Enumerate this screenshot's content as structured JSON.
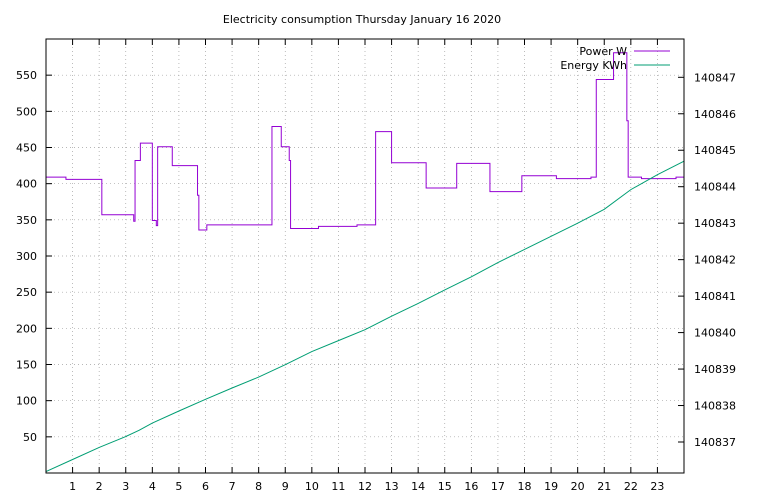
{
  "chart_data": {
    "type": "line",
    "title": "Electricity consumption Thursday January 16 2020",
    "xlabel": "",
    "ylabel": "",
    "y2label": "",
    "xlim": [
      0,
      24
    ],
    "ylim": [
      0,
      600
    ],
    "y2lim": [
      140836.15,
      140848.05
    ],
    "grid": true,
    "legend_position": "top-right",
    "x_ticks": [
      "1",
      "2",
      "3",
      "4",
      "5",
      "6",
      "7",
      "8",
      "9",
      "10",
      "11",
      "12",
      "13",
      "14",
      "15",
      "16",
      "17",
      "18",
      "19",
      "20",
      "21",
      "22",
      "23"
    ],
    "y_ticks": [
      "50",
      "100",
      "150",
      "200",
      "250",
      "300",
      "350",
      "400",
      "450",
      "500",
      "550"
    ],
    "y2_ticks": [
      "140837",
      "140838",
      "140839",
      "140840",
      "140841",
      "140842",
      "140843",
      "140844",
      "140845",
      "140846",
      "140847"
    ],
    "series": [
      {
        "name": "Power W",
        "color": "#9400d3",
        "axis": "left",
        "step": true,
        "points": [
          [
            0,
            409
          ],
          [
            0.75,
            409
          ],
          [
            0.75,
            406
          ],
          [
            2.1,
            406
          ],
          [
            2.1,
            357
          ],
          [
            3.3,
            357
          ],
          [
            3.3,
            348
          ],
          [
            3.35,
            348
          ],
          [
            3.35,
            432
          ],
          [
            3.55,
            432
          ],
          [
            3.55,
            456
          ],
          [
            4.0,
            456
          ],
          [
            4.0,
            349
          ],
          [
            4.15,
            349
          ],
          [
            4.15,
            342
          ],
          [
            4.2,
            342
          ],
          [
            4.2,
            451
          ],
          [
            4.75,
            451
          ],
          [
            4.75,
            425
          ],
          [
            5.7,
            425
          ],
          [
            5.7,
            384
          ],
          [
            5.75,
            384
          ],
          [
            5.75,
            336
          ],
          [
            6.05,
            336
          ],
          [
            6.05,
            343
          ],
          [
            8.5,
            343
          ],
          [
            8.5,
            479
          ],
          [
            8.85,
            479
          ],
          [
            8.85,
            451
          ],
          [
            9.15,
            451
          ],
          [
            9.15,
            432
          ],
          [
            9.2,
            432
          ],
          [
            9.2,
            338
          ],
          [
            10.25,
            338
          ],
          [
            10.25,
            341
          ],
          [
            11.7,
            341
          ],
          [
            11.7,
            343
          ],
          [
            12.4,
            343
          ],
          [
            12.4,
            472
          ],
          [
            13.0,
            472
          ],
          [
            13.0,
            429
          ],
          [
            14.3,
            429
          ],
          [
            14.3,
            394
          ],
          [
            15.45,
            394
          ],
          [
            15.45,
            428
          ],
          [
            16.7,
            428
          ],
          [
            16.7,
            389
          ],
          [
            17.9,
            389
          ],
          [
            17.9,
            411
          ],
          [
            19.2,
            411
          ],
          [
            19.2,
            407
          ],
          [
            20.5,
            407
          ],
          [
            20.5,
            409
          ],
          [
            20.7,
            409
          ],
          [
            20.7,
            544
          ],
          [
            21.35,
            544
          ],
          [
            21.35,
            581
          ],
          [
            21.85,
            581
          ],
          [
            21.85,
            487
          ],
          [
            21.9,
            487
          ],
          [
            21.9,
            409
          ],
          [
            22.4,
            409
          ],
          [
            22.4,
            407
          ],
          [
            23.7,
            407
          ],
          [
            23.7,
            409
          ],
          [
            24,
            409
          ]
        ]
      },
      {
        "name": "Energy KWh",
        "color": "#009e73",
        "axis": "right",
        "step": false,
        "points": [
          [
            0,
            140836.19
          ],
          [
            1,
            140836.52
          ],
          [
            2,
            140836.85
          ],
          [
            3,
            140837.15
          ],
          [
            3.5,
            140837.32
          ],
          [
            4,
            140837.52
          ],
          [
            5,
            140837.85
          ],
          [
            6,
            140838.17
          ],
          [
            7,
            140838.48
          ],
          [
            8,
            140838.78
          ],
          [
            9,
            140839.12
          ],
          [
            10,
            140839.48
          ],
          [
            11,
            140839.78
          ],
          [
            12,
            140840.08
          ],
          [
            13,
            140840.45
          ],
          [
            14,
            140840.8
          ],
          [
            15,
            140841.17
          ],
          [
            16,
            140841.53
          ],
          [
            17,
            140841.92
          ],
          [
            18,
            140842.28
          ],
          [
            19,
            140842.64
          ],
          [
            20,
            140843.0
          ],
          [
            21,
            140843.38
          ],
          [
            22,
            140843.92
          ],
          [
            23,
            140844.33
          ],
          [
            24,
            140844.7
          ]
        ]
      }
    ]
  }
}
